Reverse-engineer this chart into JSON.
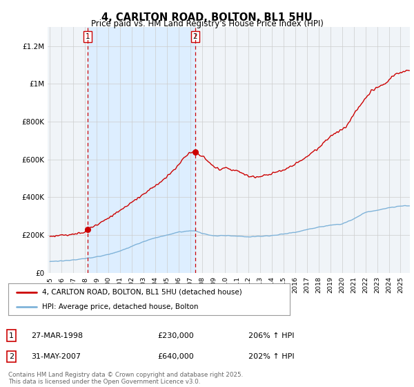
{
  "title": "4, CARLTON ROAD, BOLTON, BL1 5HU",
  "subtitle": "Price paid vs. HM Land Registry's House Price Index (HPI)",
  "ylim": [
    0,
    1300000
  ],
  "yticks": [
    0,
    200000,
    400000,
    600000,
    800000,
    1000000,
    1200000
  ],
  "ytick_labels": [
    "£0",
    "£200K",
    "£400K",
    "£600K",
    "£800K",
    "£1M",
    "£1.2M"
  ],
  "xlim_start": 1994.8,
  "xlim_end": 2025.8,
  "xticks": [
    1995,
    1996,
    1997,
    1998,
    1999,
    2000,
    2001,
    2002,
    2003,
    2004,
    2005,
    2006,
    2007,
    2008,
    2009,
    2010,
    2011,
    2012,
    2013,
    2014,
    2015,
    2016,
    2017,
    2018,
    2019,
    2020,
    2021,
    2022,
    2023,
    2024,
    2025
  ],
  "sale1_year": 1998.23,
  "sale1_price": 230000,
  "sale2_year": 2007.42,
  "sale2_price": 640000,
  "line_color_property": "#cc0000",
  "line_color_hpi": "#7fb3d9",
  "shade_color": "#ddeeff",
  "background_color": "#f0f4f8",
  "grid_color": "#cccccc",
  "legend_label_property": "4, CARLTON ROAD, BOLTON, BL1 5HU (detached house)",
  "legend_label_hpi": "HPI: Average price, detached house, Bolton",
  "footer": "Contains HM Land Registry data © Crown copyright and database right 2025.\nThis data is licensed under the Open Government Licence v3.0.",
  "table": [
    {
      "num": "1",
      "date": "27-MAR-1998",
      "price": "£230,000",
      "hpi": "206% ↑ HPI"
    },
    {
      "num": "2",
      "date": "31-MAY-2007",
      "price": "£640,000",
      "hpi": "202% ↑ HPI"
    }
  ]
}
